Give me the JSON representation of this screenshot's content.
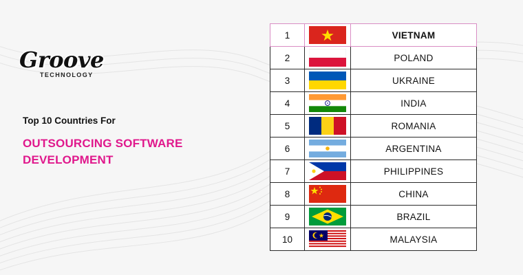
{
  "logo": {
    "word": "Groove",
    "sub": "TECHNOLOGY"
  },
  "headline": {
    "small": "Top 10 Countries For",
    "big": "OUTSOURCING SOFTWARE DEVELOPMENT"
  },
  "colors": {
    "accent": "#e0188c",
    "highlight_border": "#d98cc4"
  },
  "ranking": [
    {
      "rank": "1",
      "country": "VIETNAM",
      "flag": "vietnam-flag-icon"
    },
    {
      "rank": "2",
      "country": "POLAND",
      "flag": "poland-flag-icon"
    },
    {
      "rank": "3",
      "country": "UKRAINE",
      "flag": "ukraine-flag-icon"
    },
    {
      "rank": "4",
      "country": "INDIA",
      "flag": "india-flag-icon"
    },
    {
      "rank": "5",
      "country": "ROMANIA",
      "flag": "romania-flag-icon"
    },
    {
      "rank": "6",
      "country": "ARGENTINA",
      "flag": "argentina-flag-icon"
    },
    {
      "rank": "7",
      "country": "PHILIPPINES",
      "flag": "philippines-flag-icon"
    },
    {
      "rank": "8",
      "country": "CHINA",
      "flag": "china-flag-icon"
    },
    {
      "rank": "9",
      "country": "BRAZIL",
      "flag": "brazil-flag-icon"
    },
    {
      "rank": "10",
      "country": "MALAYSIA",
      "flag": "malaysia-flag-icon"
    }
  ]
}
